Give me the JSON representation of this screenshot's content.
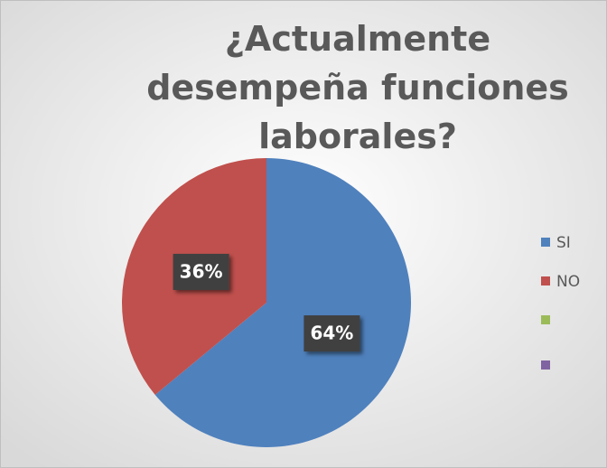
{
  "chart_data": {
    "type": "pie",
    "title": "¿Actualmente desempeña funciones laborales?",
    "categories": [
      "SI",
      "NO",
      null,
      null
    ],
    "values": [
      64,
      36,
      0,
      0
    ],
    "value_labels": [
      "64%",
      "36%",
      null,
      null
    ],
    "colors": [
      "#4f81bd",
      "#c0504d",
      "#9bbb59",
      "#8064a2"
    ],
    "legend": "right"
  }
}
